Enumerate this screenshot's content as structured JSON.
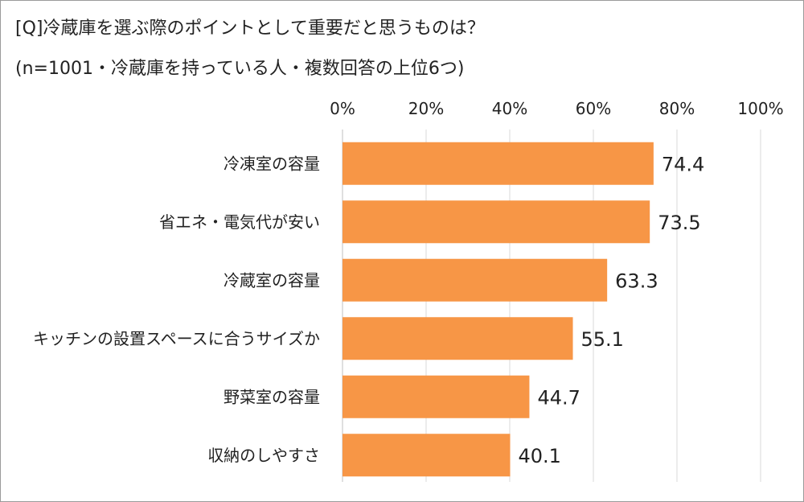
{
  "title": {
    "line1": "[Q]冷蔵庫を選ぶ際のポイントとして重要だと思うものは？",
    "line2": "(n=1001・冷蔵庫を持っている人・複数回答の上位6つ)"
  },
  "chart_data": {
    "type": "bar",
    "orientation": "horizontal",
    "categories": [
      "冷凍室の容量",
      "省エネ・電気代が安い",
      "冷蔵室の容量",
      "キッチンの設置スペースに合うサイズか",
      "野菜室の容量",
      "収納のしやすさ"
    ],
    "values": [
      74.4,
      73.5,
      63.3,
      55.1,
      44.7,
      40.1
    ],
    "value_labels": [
      "74.4",
      "73.5",
      "63.3",
      "55.1",
      "44.7",
      "40.1"
    ],
    "xlim": [
      0,
      100
    ],
    "x_ticks": [
      0,
      20,
      40,
      60,
      80,
      100
    ],
    "x_tick_labels": [
      "0%",
      "20%",
      "40%",
      "60%",
      "80%",
      "100%"
    ],
    "axis_position": "top",
    "grid": true,
    "legend": "none",
    "bar_color": "#F79646",
    "grid_color": "#D9D9D9",
    "text_color": "#222222"
  }
}
